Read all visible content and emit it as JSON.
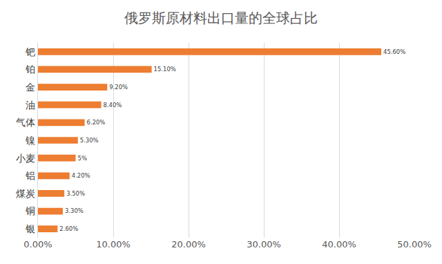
{
  "chart_data": {
    "type": "bar",
    "orientation": "horizontal",
    "title": "俄罗斯原材料出口量的全球占比",
    "categories": [
      "钯",
      "铂",
      "金",
      "油",
      "气体",
      "镍",
      "小麦",
      "铝",
      "煤炭",
      "铜",
      "银"
    ],
    "values": [
      45.6,
      15.1,
      9.2,
      8.4,
      6.2,
      5.3,
      5,
      4.2,
      3.5,
      3.3,
      2.6
    ],
    "value_labels": [
      "45.60%",
      "15.10%",
      "9.20%",
      "8.40%",
      "6.20%",
      "5.30%",
      "5%",
      "4.20%",
      "3.50%",
      "3.30%",
      "2.60%"
    ],
    "data_labels": true,
    "color": "#ed7d31",
    "xlim": [
      0,
      50
    ],
    "xticks": [
      {
        "value": 0,
        "label": "0.00%"
      },
      {
        "value": 10,
        "label": "10.00%"
      },
      {
        "value": 20,
        "label": "20.00%"
      },
      {
        "value": 30,
        "label": "30.00%"
      },
      {
        "value": 40,
        "label": "40.00%"
      },
      {
        "value": 50,
        "label": "50.00%"
      }
    ],
    "grid": true
  }
}
